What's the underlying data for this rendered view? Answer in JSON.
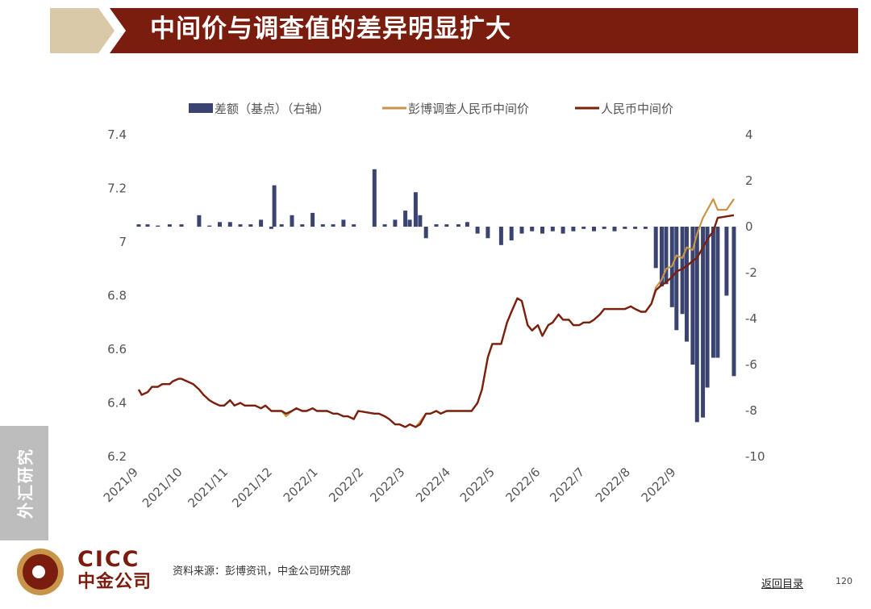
{
  "header": {
    "title": "中间价与调查值的差异明显扩大",
    "colors": {
      "arrow": "#d9c9a9",
      "banner": "#7a1d0e"
    }
  },
  "side_tab": {
    "label": "外汇研究"
  },
  "footer": {
    "logo_en": "CICC",
    "logo_cn": "中金公司",
    "source": "资料来源：彭博资讯，中金公司研究部",
    "back_link": "返回目录",
    "page_number": "120"
  },
  "chart_data": {
    "type": "bar+line",
    "title": "",
    "legend": [
      {
        "name": "差额（基点）（右轴）",
        "type": "bar",
        "color": "#3b4470"
      },
      {
        "name": "彭博调查人民币中间价",
        "type": "line",
        "color": "#c8944a"
      },
      {
        "name": "人民币中间价",
        "type": "line",
        "color": "#7b1f0f"
      }
    ],
    "legend_position": "top-center",
    "grid": false,
    "x_range": [
      "2021-09-01",
      "2022-10-10"
    ],
    "x_tick_labels": [
      "2021/9",
      "2021/10",
      "2021/11",
      "2021/12",
      "2022/1",
      "2022/2",
      "2022/3",
      "2022/4",
      "2022/5",
      "2022/6",
      "2022/7",
      "2022/8",
      "2022/9"
    ],
    "left_axis": {
      "min": 6.2,
      "max": 7.4,
      "ticks": [
        "6.2",
        "6.4",
        "6.6",
        "6.8",
        "7",
        "7.2",
        "7.4"
      ]
    },
    "right_axis": {
      "min": -10,
      "max": 4,
      "ticks": [
        "-10",
        "-8",
        "-6",
        "-4",
        "-2",
        "0",
        "2",
        "4"
      ]
    },
    "fixing_series": [
      [
        "2021-09-01",
        6.45
      ],
      [
        "2021-09-03",
        6.43
      ],
      [
        "2021-09-07",
        6.44
      ],
      [
        "2021-09-10",
        6.46
      ],
      [
        "2021-09-14",
        6.46
      ],
      [
        "2021-09-17",
        6.47
      ],
      [
        "2021-09-22",
        6.47
      ],
      [
        "2021-09-24",
        6.48
      ],
      [
        "2021-09-28",
        6.49
      ],
      [
        "2021-09-30",
        6.49
      ],
      [
        "2021-10-08",
        6.47
      ],
      [
        "2021-10-12",
        6.45
      ],
      [
        "2021-10-15",
        6.43
      ],
      [
        "2021-10-19",
        6.41
      ],
      [
        "2021-10-22",
        6.4
      ],
      [
        "2021-10-26",
        6.39
      ],
      [
        "2021-10-29",
        6.39
      ],
      [
        "2021-11-02",
        6.41
      ],
      [
        "2021-11-05",
        6.39
      ],
      [
        "2021-11-09",
        6.4
      ],
      [
        "2021-11-12",
        6.39
      ],
      [
        "2021-11-16",
        6.39
      ],
      [
        "2021-11-19",
        6.39
      ],
      [
        "2021-11-23",
        6.38
      ],
      [
        "2021-11-26",
        6.39
      ],
      [
        "2021-11-30",
        6.37
      ],
      [
        "2021-12-03",
        6.37
      ],
      [
        "2021-12-07",
        6.37
      ],
      [
        "2021-12-10",
        6.36
      ],
      [
        "2021-12-14",
        6.37
      ],
      [
        "2021-12-17",
        6.38
      ],
      [
        "2021-12-21",
        6.37
      ],
      [
        "2021-12-24",
        6.37
      ],
      [
        "2021-12-28",
        6.38
      ],
      [
        "2021-12-31",
        6.37
      ],
      [
        "2022-01-04",
        6.37
      ],
      [
        "2022-01-07",
        6.37
      ],
      [
        "2022-01-11",
        6.36
      ],
      [
        "2022-01-14",
        6.36
      ],
      [
        "2022-01-18",
        6.35
      ],
      [
        "2022-01-21",
        6.35
      ],
      [
        "2022-01-25",
        6.34
      ],
      [
        "2022-01-28",
        6.37
      ],
      [
        "2022-02-08",
        6.36
      ],
      [
        "2022-02-11",
        6.36
      ],
      [
        "2022-02-15",
        6.35
      ],
      [
        "2022-02-18",
        6.34
      ],
      [
        "2022-02-22",
        6.32
      ],
      [
        "2022-02-25",
        6.32
      ],
      [
        "2022-03-01",
        6.31
      ],
      [
        "2022-03-04",
        6.32
      ],
      [
        "2022-03-08",
        6.31
      ],
      [
        "2022-03-11",
        6.32
      ],
      [
        "2022-03-15",
        6.36
      ],
      [
        "2022-03-18",
        6.36
      ],
      [
        "2022-03-22",
        6.37
      ],
      [
        "2022-03-25",
        6.36
      ],
      [
        "2022-03-29",
        6.37
      ],
      [
        "2022-04-01",
        6.37
      ],
      [
        "2022-04-06",
        6.37
      ],
      [
        "2022-04-08",
        6.37
      ],
      [
        "2022-04-12",
        6.37
      ],
      [
        "2022-04-15",
        6.37
      ],
      [
        "2022-04-19",
        6.4
      ],
      [
        "2022-04-22",
        6.45
      ],
      [
        "2022-04-26",
        6.57
      ],
      [
        "2022-04-29",
        6.62
      ],
      [
        "2022-05-05",
        6.62
      ],
      [
        "2022-05-09",
        6.7
      ],
      [
        "2022-05-12",
        6.74
      ],
      [
        "2022-05-16",
        6.79
      ],
      [
        "2022-05-19",
        6.78
      ],
      [
        "2022-05-23",
        6.69
      ],
      [
        "2022-05-26",
        6.67
      ],
      [
        "2022-05-30",
        6.69
      ],
      [
        "2022-06-02",
        6.65
      ],
      [
        "2022-06-06",
        6.69
      ],
      [
        "2022-06-09",
        6.7
      ],
      [
        "2022-06-13",
        6.73
      ],
      [
        "2022-06-16",
        6.71
      ],
      [
        "2022-06-20",
        6.71
      ],
      [
        "2022-06-23",
        6.69
      ],
      [
        "2022-06-27",
        6.69
      ],
      [
        "2022-06-30",
        6.7
      ],
      [
        "2022-07-04",
        6.7
      ],
      [
        "2022-07-07",
        6.71
      ],
      [
        "2022-07-11",
        6.73
      ],
      [
        "2022-07-14",
        6.75
      ],
      [
        "2022-07-18",
        6.75
      ],
      [
        "2022-07-21",
        6.75
      ],
      [
        "2022-07-25",
        6.75
      ],
      [
        "2022-07-28",
        6.75
      ],
      [
        "2022-08-01",
        6.76
      ],
      [
        "2022-08-04",
        6.75
      ],
      [
        "2022-08-08",
        6.74
      ],
      [
        "2022-08-11",
        6.74
      ],
      [
        "2022-08-15",
        6.77
      ],
      [
        "2022-08-18",
        6.82
      ],
      [
        "2022-08-22",
        6.84
      ],
      [
        "2022-08-25",
        6.85
      ],
      [
        "2022-08-29",
        6.87
      ],
      [
        "2022-09-01",
        6.89
      ],
      [
        "2022-09-05",
        6.9
      ],
      [
        "2022-09-08",
        6.91
      ],
      [
        "2022-09-12",
        6.93
      ],
      [
        "2022-09-15",
        6.94
      ],
      [
        "2022-09-19",
        6.98
      ],
      [
        "2022-09-22",
        7.01
      ],
      [
        "2022-09-26",
        7.04
      ],
      [
        "2022-09-29",
        7.09
      ],
      [
        "2022-10-10",
        7.1
      ]
    ],
    "survey_series": [
      [
        "2021-09-01",
        6.45
      ],
      [
        "2021-09-03",
        6.43
      ],
      [
        "2021-09-07",
        6.44
      ],
      [
        "2021-09-10",
        6.46
      ],
      [
        "2021-09-14",
        6.46
      ],
      [
        "2021-09-17",
        6.47
      ],
      [
        "2021-09-22",
        6.47
      ],
      [
        "2021-09-24",
        6.48
      ],
      [
        "2021-09-28",
        6.49
      ],
      [
        "2021-09-30",
        6.49
      ],
      [
        "2021-10-08",
        6.47
      ],
      [
        "2021-10-12",
        6.45
      ],
      [
        "2021-10-15",
        6.43
      ],
      [
        "2021-10-19",
        6.41
      ],
      [
        "2021-10-22",
        6.4
      ],
      [
        "2021-10-26",
        6.39
      ],
      [
        "2021-10-29",
        6.39
      ],
      [
        "2021-11-02",
        6.41
      ],
      [
        "2021-11-05",
        6.39
      ],
      [
        "2021-11-09",
        6.4
      ],
      [
        "2021-11-12",
        6.39
      ],
      [
        "2021-11-16",
        6.39
      ],
      [
        "2021-11-19",
        6.39
      ],
      [
        "2021-11-23",
        6.38
      ],
      [
        "2021-11-26",
        6.39
      ],
      [
        "2021-11-30",
        6.37
      ],
      [
        "2021-12-03",
        6.37
      ],
      [
        "2021-12-07",
        6.37
      ],
      [
        "2021-12-10",
        6.35
      ],
      [
        "2021-12-14",
        6.37
      ],
      [
        "2021-12-17",
        6.38
      ],
      [
        "2021-12-21",
        6.37
      ],
      [
        "2021-12-24",
        6.37
      ],
      [
        "2021-12-28",
        6.38
      ],
      [
        "2021-12-31",
        6.37
      ],
      [
        "2022-01-04",
        6.37
      ],
      [
        "2022-01-07",
        6.37
      ],
      [
        "2022-01-11",
        6.36
      ],
      [
        "2022-01-14",
        6.36
      ],
      [
        "2022-01-18",
        6.35
      ],
      [
        "2022-01-21",
        6.35
      ],
      [
        "2022-01-25",
        6.34
      ],
      [
        "2022-01-28",
        6.37
      ],
      [
        "2022-02-08",
        6.36
      ],
      [
        "2022-02-11",
        6.36
      ],
      [
        "2022-02-15",
        6.35
      ],
      [
        "2022-02-18",
        6.34
      ],
      [
        "2022-02-22",
        6.32
      ],
      [
        "2022-02-25",
        6.32
      ],
      [
        "2022-03-01",
        6.31
      ],
      [
        "2022-03-04",
        6.32
      ],
      [
        "2022-03-08",
        6.31
      ],
      [
        "2022-03-11",
        6.33
      ],
      [
        "2022-03-15",
        6.36
      ],
      [
        "2022-03-18",
        6.36
      ],
      [
        "2022-03-22",
        6.37
      ],
      [
        "2022-03-25",
        6.36
      ],
      [
        "2022-03-29",
        6.37
      ],
      [
        "2022-04-01",
        6.37
      ],
      [
        "2022-04-06",
        6.37
      ],
      [
        "2022-04-08",
        6.37
      ],
      [
        "2022-04-12",
        6.37
      ],
      [
        "2022-04-15",
        6.37
      ],
      [
        "2022-04-19",
        6.4
      ],
      [
        "2022-04-22",
        6.45
      ],
      [
        "2022-04-26",
        6.57
      ],
      [
        "2022-04-29",
        6.62
      ],
      [
        "2022-05-05",
        6.62
      ],
      [
        "2022-05-09",
        6.7
      ],
      [
        "2022-05-12",
        6.74
      ],
      [
        "2022-05-16",
        6.79
      ],
      [
        "2022-05-19",
        6.78
      ],
      [
        "2022-05-23",
        6.69
      ],
      [
        "2022-05-26",
        6.67
      ],
      [
        "2022-05-30",
        6.69
      ],
      [
        "2022-06-02",
        6.65
      ],
      [
        "2022-06-06",
        6.69
      ],
      [
        "2022-06-09",
        6.7
      ],
      [
        "2022-06-13",
        6.73
      ],
      [
        "2022-06-16",
        6.71
      ],
      [
        "2022-06-20",
        6.71
      ],
      [
        "2022-06-23",
        6.69
      ],
      [
        "2022-06-27",
        6.69
      ],
      [
        "2022-06-30",
        6.7
      ],
      [
        "2022-07-04",
        6.7
      ],
      [
        "2022-07-07",
        6.71
      ],
      [
        "2022-07-11",
        6.73
      ],
      [
        "2022-07-14",
        6.75
      ],
      [
        "2022-07-18",
        6.75
      ],
      [
        "2022-07-21",
        6.75
      ],
      [
        "2022-07-25",
        6.75
      ],
      [
        "2022-07-28",
        6.75
      ],
      [
        "2022-08-01",
        6.76
      ],
      [
        "2022-08-04",
        6.75
      ],
      [
        "2022-08-08",
        6.74
      ],
      [
        "2022-08-11",
        6.74
      ],
      [
        "2022-08-15",
        6.77
      ],
      [
        "2022-08-18",
        6.83
      ],
      [
        "2022-08-22",
        6.86
      ],
      [
        "2022-08-25",
        6.9
      ],
      [
        "2022-08-29",
        6.91
      ],
      [
        "2022-09-01",
        6.95
      ],
      [
        "2022-09-05",
        6.94
      ],
      [
        "2022-09-08",
        6.98
      ],
      [
        "2022-09-12",
        6.97
      ],
      [
        "2022-09-15",
        7.03
      ],
      [
        "2022-09-19",
        7.09
      ],
      [
        "2022-09-22",
        7.12
      ],
      [
        "2022-09-26",
        7.16
      ],
      [
        "2022-09-29",
        7.12
      ],
      [
        "2022-10-05",
        7.12
      ],
      [
        "2022-10-10",
        7.16
      ]
    ],
    "spread_bars": [
      [
        "2021-09-01",
        0.1
      ],
      [
        "2021-09-07",
        0.1
      ],
      [
        "2021-09-14",
        0.05
      ],
      [
        "2021-09-22",
        0.1
      ],
      [
        "2021-09-30",
        0.1
      ],
      [
        "2021-10-12",
        0.5
      ],
      [
        "2021-10-19",
        0.05
      ],
      [
        "2021-10-26",
        0.2
      ],
      [
        "2021-11-02",
        0.2
      ],
      [
        "2021-11-09",
        0.1
      ],
      [
        "2021-11-16",
        0.1
      ],
      [
        "2021-11-23",
        0.3
      ],
      [
        "2021-11-30",
        -0.1
      ],
      [
        "2021-12-02",
        1.8
      ],
      [
        "2021-12-07",
        0.1
      ],
      [
        "2021-12-14",
        0.5
      ],
      [
        "2021-12-21",
        0.1
      ],
      [
        "2021-12-28",
        0.6
      ],
      [
        "2022-01-04",
        0.1
      ],
      [
        "2022-01-11",
        0.1
      ],
      [
        "2022-01-18",
        0.3
      ],
      [
        "2022-01-25",
        0.1
      ],
      [
        "2022-02-08",
        2.5
      ],
      [
        "2022-02-15",
        0.1
      ],
      [
        "2022-02-22",
        0.3
      ],
      [
        "2022-03-01",
        0.7
      ],
      [
        "2022-03-04",
        0.3
      ],
      [
        "2022-03-08",
        1.5
      ],
      [
        "2022-03-11",
        0.5
      ],
      [
        "2022-03-15",
        -0.5
      ],
      [
        "2022-03-22",
        0.1
      ],
      [
        "2022-03-29",
        0.1
      ],
      [
        "2022-04-06",
        0.1
      ],
      [
        "2022-04-12",
        0.2
      ],
      [
        "2022-04-19",
        -0.3
      ],
      [
        "2022-04-26",
        -0.5
      ],
      [
        "2022-05-05",
        -0.8
      ],
      [
        "2022-05-12",
        -0.6
      ],
      [
        "2022-05-19",
        -0.3
      ],
      [
        "2022-05-26",
        -0.2
      ],
      [
        "2022-06-02",
        -0.3
      ],
      [
        "2022-06-09",
        -0.2
      ],
      [
        "2022-06-16",
        -0.3
      ],
      [
        "2022-06-23",
        -0.2
      ],
      [
        "2022-06-30",
        -0.1
      ],
      [
        "2022-07-07",
        -0.2
      ],
      [
        "2022-07-14",
        -0.1
      ],
      [
        "2022-07-21",
        -0.2
      ],
      [
        "2022-07-28",
        -0.1
      ],
      [
        "2022-08-04",
        -0.1
      ],
      [
        "2022-08-11",
        -0.1
      ],
      [
        "2022-08-18",
        -1.8
      ],
      [
        "2022-08-22",
        -2.6
      ],
      [
        "2022-08-25",
        -2.5
      ],
      [
        "2022-08-29",
        -3.5
      ],
      [
        "2022-09-01",
        -4.5
      ],
      [
        "2022-09-05",
        -3.8
      ],
      [
        "2022-09-08",
        -5.0
      ],
      [
        "2022-09-12",
        -6.0
      ],
      [
        "2022-09-15",
        -8.5
      ],
      [
        "2022-09-19",
        -8.3
      ],
      [
        "2022-09-22",
        -7.0
      ],
      [
        "2022-09-26",
        -5.7
      ],
      [
        "2022-09-29",
        -5.7
      ],
      [
        "2022-10-05",
        -3.0
      ],
      [
        "2022-10-10",
        -6.5
      ]
    ]
  }
}
